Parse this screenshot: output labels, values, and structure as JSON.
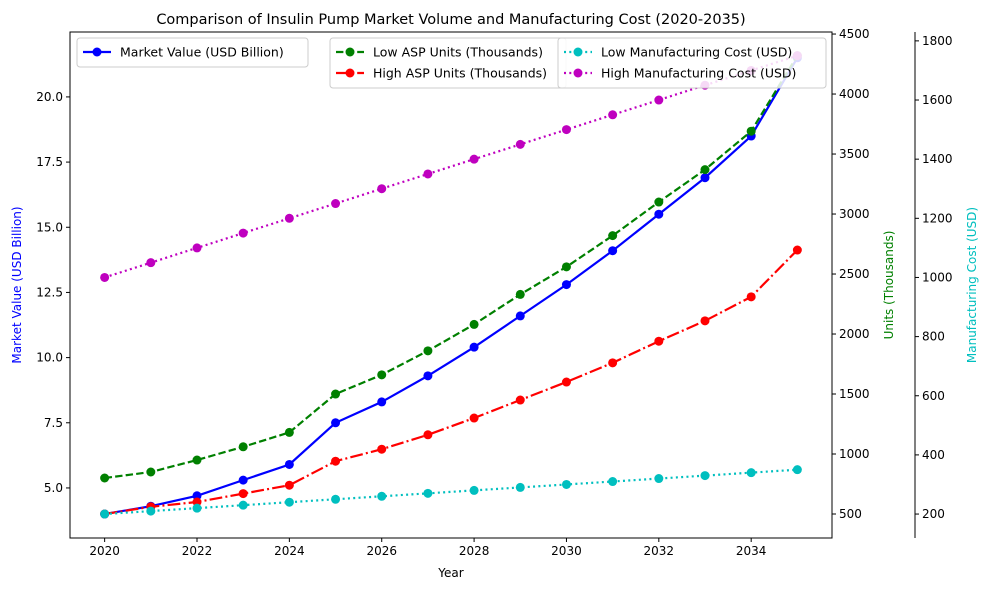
{
  "chart_data": {
    "type": "line",
    "title": "Comparison of Insulin Pump Market Volume and Manufacturing Cost (2020-2035)",
    "xlabel": "Year",
    "x": [
      2020,
      2021,
      2022,
      2023,
      2024,
      2025,
      2026,
      2027,
      2028,
      2029,
      2030,
      2031,
      2032,
      2033,
      2034,
      2035
    ],
    "xlim": [
      2019.25,
      2035.75
    ],
    "xticks": [
      2020,
      2022,
      2024,
      2026,
      2028,
      2030,
      2032,
      2034
    ],
    "grid": false,
    "axes": {
      "left": {
        "label": "Market Value (USD Billion)",
        "color": "#0000ff",
        "ylim": [
          3.08,
          22.49
        ],
        "ticks": [
          "5.0",
          "7.5",
          "10.0",
          "12.5",
          "15.0",
          "17.5",
          "20.0"
        ]
      },
      "right": {
        "label": "Units (Thousands)",
        "color": "#008000",
        "ylim": [
          300,
          4517
        ],
        "ticks": [
          "500",
          "1000",
          "1500",
          "2000",
          "2500",
          "3000",
          "3500",
          "4000",
          "4500"
        ]
      },
      "right2": {
        "label": "Manufacturing Cost (USD)",
        "color": "#00bfbf",
        "ylim": [
          119,
          1830
        ],
        "ticks": [
          "200",
          "400",
          "600",
          "800",
          "1000",
          "1200",
          "1400",
          "1600",
          "1800"
        ]
      }
    },
    "series": [
      {
        "name": "Market Value (USD Billion)",
        "axis": "left",
        "color": "#0000ff",
        "style": "solid",
        "values": [
          4.0,
          4.3,
          4.7,
          5.3,
          5.9,
          7.5,
          8.3,
          9.3,
          10.4,
          11.6,
          12.8,
          14.1,
          15.5,
          16.9,
          18.5,
          21.5
        ]
      },
      {
        "name": "Low ASP Units (Thousands)",
        "axis": "right",
        "color": "#008000",
        "style": "dashed",
        "values": [
          800,
          850,
          950,
          1060,
          1180,
          1500,
          1660,
          1860,
          2080,
          2330,
          2560,
          2820,
          3100,
          3370,
          3690,
          4320
        ]
      },
      {
        "name": "High ASP Units (Thousands)",
        "axis": "right",
        "color": "#ff0000",
        "style": "dashdot",
        "values": [
          500,
          560,
          600,
          670,
          740,
          940,
          1040,
          1160,
          1300,
          1450,
          1600,
          1760,
          1940,
          2110,
          2310,
          2700
        ]
      },
      {
        "name": "Low Manufacturing Cost (USD)",
        "axis": "right2",
        "color": "#00bfbf",
        "style": "dotted",
        "values": [
          200,
          210,
          220,
          230,
          240,
          250,
          260,
          270,
          280,
          290,
          300,
          310,
          320,
          330,
          340,
          350
        ]
      },
      {
        "name": "High Manufacturing Cost (USD)",
        "axis": "right2",
        "color": "#bf00bf",
        "style": "dotted",
        "values": [
          1000,
          1050,
          1100,
          1150,
          1200,
          1250,
          1300,
          1350,
          1400,
          1450,
          1500,
          1550,
          1600,
          1650,
          1700,
          1750
        ]
      }
    ],
    "legends": [
      {
        "location": "upper-left",
        "entries": [
          0
        ]
      },
      {
        "location": "upper-center",
        "entries": [
          1,
          2
        ]
      },
      {
        "location": "upper-right",
        "entries": [
          3,
          4
        ]
      }
    ]
  }
}
